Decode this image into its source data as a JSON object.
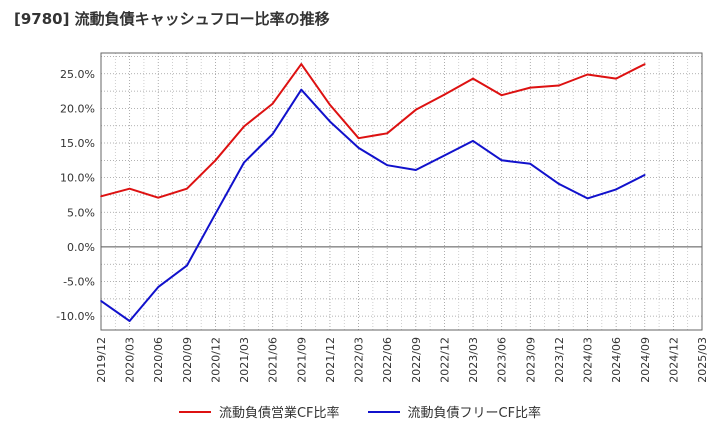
{
  "chart_data": {
    "type": "line",
    "title": "[9780]  流動負債キャッシュフロー比率の推移",
    "x": [
      "2019/12",
      "2020/03",
      "2020/06",
      "2020/09",
      "2020/12",
      "2021/03",
      "2021/06",
      "2021/09",
      "2021/12",
      "2022/03",
      "2022/06",
      "2022/09",
      "2022/12",
      "2023/03",
      "2023/06",
      "2023/09",
      "2023/12",
      "2024/03",
      "2024/06",
      "2024/09",
      "2024/12",
      "2025/03"
    ],
    "y_ticks": [
      "25.0%",
      "20.0%",
      "15.0%",
      "10.0%",
      "5.0%",
      "0.0%",
      "-5.0%",
      "-10.0%"
    ],
    "y_tick_values": [
      25,
      20,
      15,
      10,
      5,
      0,
      -5,
      -10
    ],
    "ylim": [
      -12,
      28
    ],
    "grid": true,
    "legend_position": "bottom",
    "series": [
      {
        "name": "流動負債営業CF比率",
        "color": "#dd1111",
        "values": [
          7.3,
          8.4,
          7.1,
          8.4,
          12.5,
          17.4,
          20.7,
          26.4,
          20.5,
          15.7,
          16.4,
          19.8,
          22.0,
          24.3,
          21.9,
          23.0,
          23.3,
          24.9,
          24.3,
          26.4,
          null,
          null
        ]
      },
      {
        "name": "流動負債フリーCF比率",
        "color": "#1111cc",
        "values": [
          -7.8,
          -10.7,
          -5.8,
          -2.7,
          4.8,
          12.2,
          16.3,
          22.7,
          18.1,
          14.3,
          11.8,
          11.1,
          13.2,
          15.3,
          12.5,
          12.0,
          9.1,
          7.0,
          8.3,
          10.4,
          null,
          null
        ]
      }
    ]
  }
}
